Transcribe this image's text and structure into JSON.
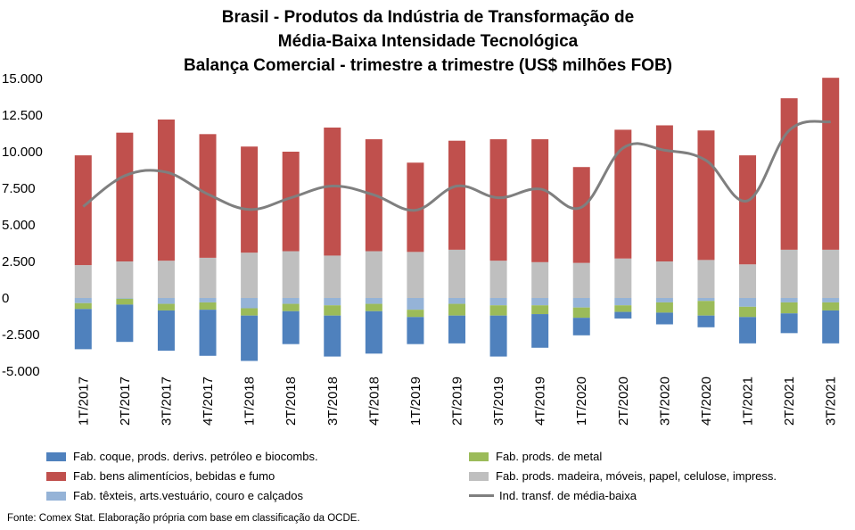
{
  "colors": {
    "coque": "#4f81bd",
    "metal": "#9bbb59",
    "alimentos": "#c0504d",
    "madeira": "#bfbfbf",
    "texteis": "#95b3d7",
    "linha": "#7f7f7f"
  },
  "chart_data": {
    "type": "bar",
    "stacked": true,
    "title_lines": [
      "Brasil - Produtos da Indústria de Transformação de",
      "Média-Baixa Intensidade Tecnológica",
      "Balança Comercial - trimestre a trimestre (US$ milhões FOB)"
    ],
    "categories": [
      "1T/2017",
      "2T/2017",
      "3T/2017",
      "4T/2017",
      "1T/2018",
      "2T/2018",
      "3T/2018",
      "4T/2018",
      "1T/2019",
      "2T/2019",
      "3T/2019",
      "4T/2019",
      "1T/2020",
      "2T/2020",
      "3T/2020",
      "4T/2020",
      "1T/2021",
      "2T/2021",
      "3T/2021"
    ],
    "ylim": [
      -5000,
      15000
    ],
    "yticks": [
      -5000,
      -2500,
      0,
      2500,
      5000,
      7500,
      10000,
      12500,
      15000
    ],
    "ytick_labels": [
      "-5.000",
      "-2.500",
      "0",
      "2.500",
      "5.000",
      "7.500",
      "10.000",
      "12.500",
      "15.000"
    ],
    "series": [
      {
        "name": "Fab. prods. madeira, móveis, papel, celulose, impress.",
        "key": "madeira",
        "kind": "bar",
        "values": [
          2250,
          2500,
          2550,
          2750,
          3100,
          3200,
          2900,
          3200,
          3150,
          3300,
          2550,
          2450,
          2400,
          2700,
          2500,
          2600,
          2300,
          3300,
          3300
        ]
      },
      {
        "name": "Fab. bens alimentícios, bebidas e fumo",
        "key": "alimentos",
        "kind": "bar",
        "values": [
          7500,
          8800,
          9650,
          8450,
          7250,
          6800,
          8750,
          7650,
          6100,
          7450,
          8300,
          8400,
          6550,
          8800,
          9300,
          8850,
          7450,
          10350,
          11750
        ]
      },
      {
        "name": "Fab. têxteis, arts.vestuário, couro e calçados",
        "key": "texteis",
        "kind": "bar",
        "values": [
          -350,
          -50,
          -400,
          -300,
          -700,
          -400,
          -500,
          -400,
          -800,
          -400,
          -500,
          -500,
          -650,
          -500,
          -300,
          -200,
          -600,
          -300,
          -300
        ]
      },
      {
        "name": "Fab. prods. de metal",
        "key": "metal",
        "kind": "bar",
        "values": [
          -400,
          -400,
          -450,
          -500,
          -500,
          -500,
          -700,
          -500,
          -500,
          -800,
          -700,
          -600,
          -700,
          -450,
          -700,
          -1000,
          -700,
          -750,
          -550
        ]
      },
      {
        "name": "Fab. coque, prods. derivs. petróleo e biocombs.",
        "key": "coque",
        "kind": "bar",
        "values": [
          -2750,
          -2550,
          -2750,
          -3150,
          -3100,
          -2250,
          -2800,
          -2900,
          -1850,
          -1900,
          -2800,
          -2300,
          -1200,
          -450,
          -800,
          -800,
          -1800,
          -1350,
          -2250
        ]
      },
      {
        "name": "Ind. transf. de média-baixa",
        "key": "linha",
        "kind": "line",
        "values": [
          6250,
          8350,
          8600,
          7100,
          6050,
          6850,
          7650,
          7050,
          6000,
          7650,
          6850,
          7450,
          6200,
          10250,
          10100,
          9400,
          6650,
          11450,
          12050
        ]
      }
    ],
    "legend_order": [
      "coque",
      "metal",
      "alimentos",
      "madeira",
      "texteis",
      "linha"
    ],
    "legend_position": "bottom",
    "grid": false
  },
  "source_note": "Fonte: Comex Stat. Elaboração própria com base em classificação da OCDE."
}
